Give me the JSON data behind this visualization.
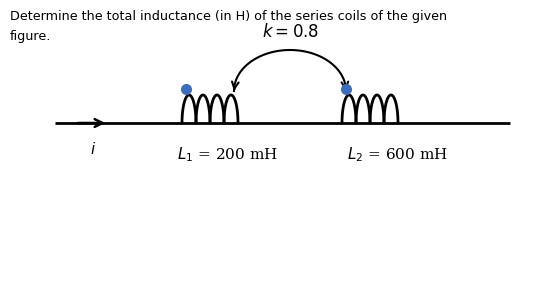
{
  "title_line1": "Determine the total inductance (in H) of the series coils of the given",
  "title_line2": "figure.",
  "k_label": "$k = 0.8$",
  "bg_color": "#ffffff",
  "text_color": "#000000",
  "coil_color": "#000000",
  "dot_color": "#3a6ebd",
  "line_color": "#000000",
  "figwidth": 5.47,
  "figheight": 3.08,
  "dpi": 100
}
